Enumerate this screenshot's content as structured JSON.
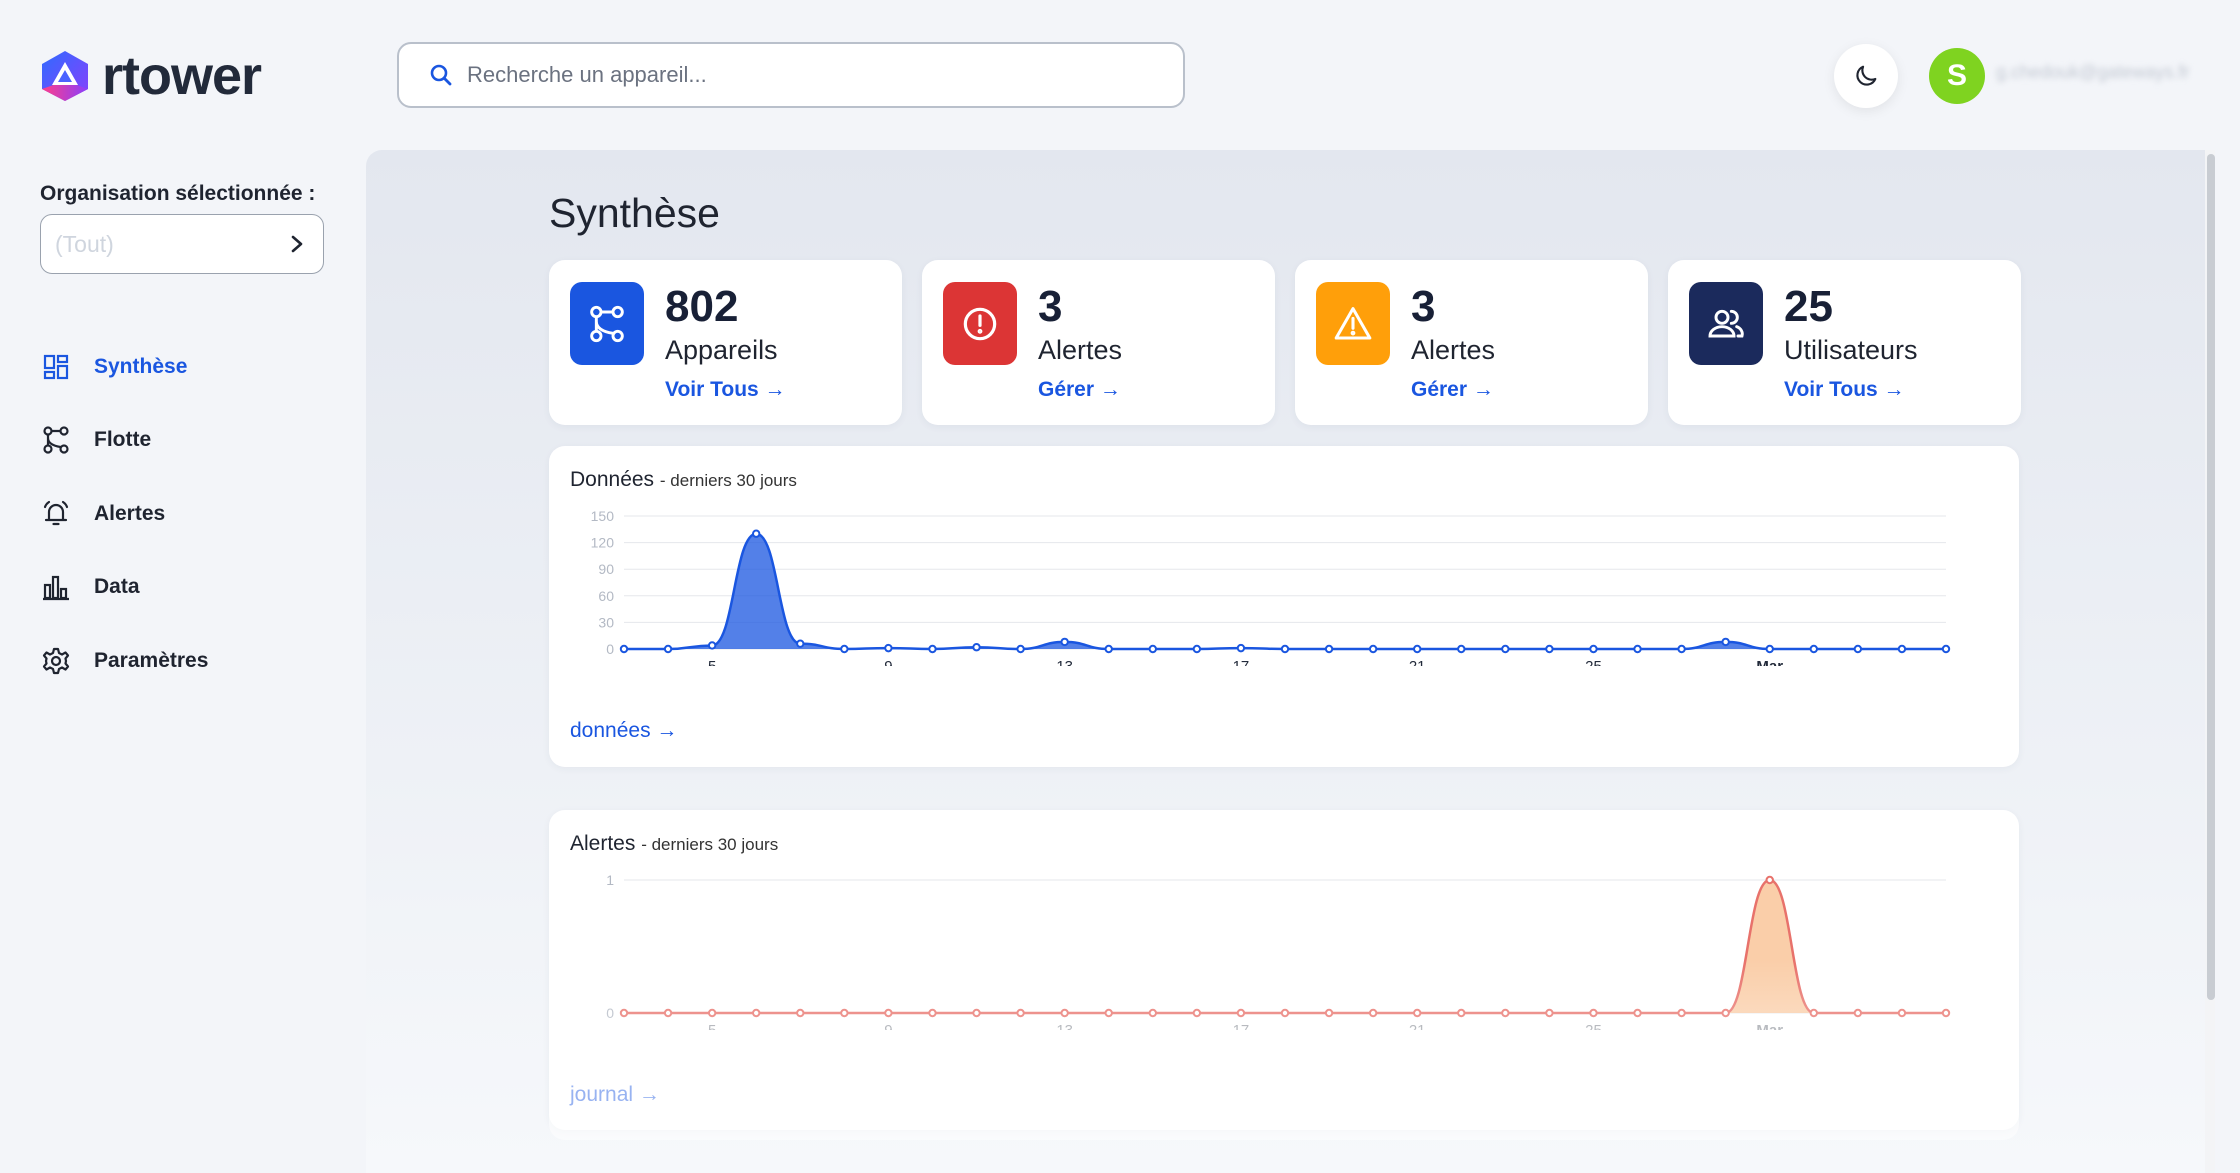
{
  "app": {
    "logo_text": "rtower",
    "search_placeholder": "Recherche un appareil...",
    "user_initial": "S",
    "user_email": "g.chedouk@gateways.fr"
  },
  "sidebar": {
    "org_label": "Organisation sélectionnée :",
    "org_value": "(Tout)",
    "items": [
      {
        "label": "Synthèse",
        "icon": "dashboard-icon",
        "active": true
      },
      {
        "label": "Flotte",
        "icon": "fleet-icon",
        "active": false
      },
      {
        "label": "Alertes",
        "icon": "bell-icon",
        "active": false
      },
      {
        "label": "Data",
        "icon": "bar-chart-icon",
        "active": false
      },
      {
        "label": "Paramètres",
        "icon": "gear-icon",
        "active": false
      }
    ]
  },
  "main": {
    "title": "Synthèse",
    "stats": [
      {
        "value": "802",
        "label": "Appareils",
        "link": "Voir Tous →",
        "icon": "fleet-icon",
        "color": "#1a56e0"
      },
      {
        "value": "3",
        "label": "Alertes",
        "link": "Gérer →",
        "icon": "alert-circle-icon",
        "color": "#dc3535"
      },
      {
        "value": "3",
        "label": "Alertes",
        "link": "Gérer →",
        "icon": "warning-icon",
        "color": "#ff9f0a"
      },
      {
        "value": "25",
        "label": "Utilisateurs",
        "link": "Voir Tous →",
        "icon": "users-icon",
        "color": "#1b2a5c"
      }
    ],
    "data_chart": {
      "title": "Données",
      "subtitle": "- derniers 30 jours",
      "link": "données →"
    },
    "alerts_chart": {
      "title": "Alertes",
      "subtitle": "- derniers 30 jours",
      "link": "journal →"
    }
  },
  "chart_data": [
    {
      "type": "area",
      "title": "Données - derniers 30 jours",
      "color": "#1a56e0",
      "ylim": [
        0,
        150
      ],
      "yticks": [
        0,
        30,
        60,
        90,
        120,
        150
      ],
      "xtick_labels": [
        "5",
        "9",
        "13",
        "17",
        "21",
        "25",
        "Mar"
      ],
      "xtick_indices": [
        2,
        6,
        10,
        14,
        18,
        22,
        26
      ],
      "values": [
        0,
        0,
        4,
        130,
        6,
        0,
        1,
        0,
        2,
        0,
        8,
        0,
        0,
        0,
        1,
        0,
        0,
        0,
        0,
        0,
        0,
        0,
        0,
        0,
        0,
        8,
        0,
        0,
        0,
        0,
        0
      ]
    },
    {
      "type": "area",
      "title": "Alertes - derniers 30 jours",
      "color": "#e8726b",
      "fill": "#f9c9a0",
      "ylim": [
        0,
        1
      ],
      "yticks": [
        0,
        1
      ],
      "xtick_labels": [
        "5",
        "9",
        "13",
        "17",
        "21",
        "25",
        "Mar"
      ],
      "xtick_indices": [
        2,
        6,
        10,
        14,
        18,
        22,
        26
      ],
      "values": [
        0,
        0,
        0,
        0,
        0,
        0,
        0,
        0,
        0,
        0,
        0,
        0,
        0,
        0,
        0,
        0,
        0,
        0,
        0,
        0,
        0,
        0,
        0,
        0,
        0,
        0,
        1,
        0,
        0,
        0,
        0
      ]
    }
  ]
}
